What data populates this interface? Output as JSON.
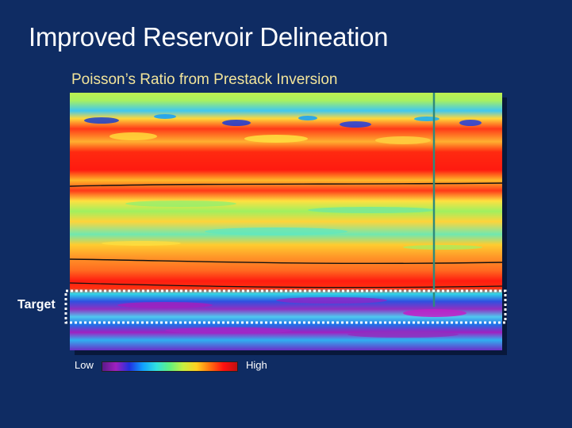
{
  "slide": {
    "title": "Improved Reservoir Delineation",
    "subtitle": "Poisson’s Ratio from Prestack Inversion"
  },
  "annotation": {
    "target_label": "Target"
  },
  "legend": {
    "low_label": "Low",
    "high_label": "High",
    "colors": [
      "#5a1a8a",
      "#a020c0",
      "#2030e0",
      "#10a0ff",
      "#30e0e0",
      "#60f080",
      "#c8f040",
      "#ffd020",
      "#ff7010",
      "#ff1010",
      "#c01010"
    ]
  },
  "colors": {
    "background": "#0f2c63",
    "title": "#ffffff",
    "subtitle": "#f2e49a",
    "well_line": "#2f8a7c",
    "target_box": "#ffffff"
  }
}
